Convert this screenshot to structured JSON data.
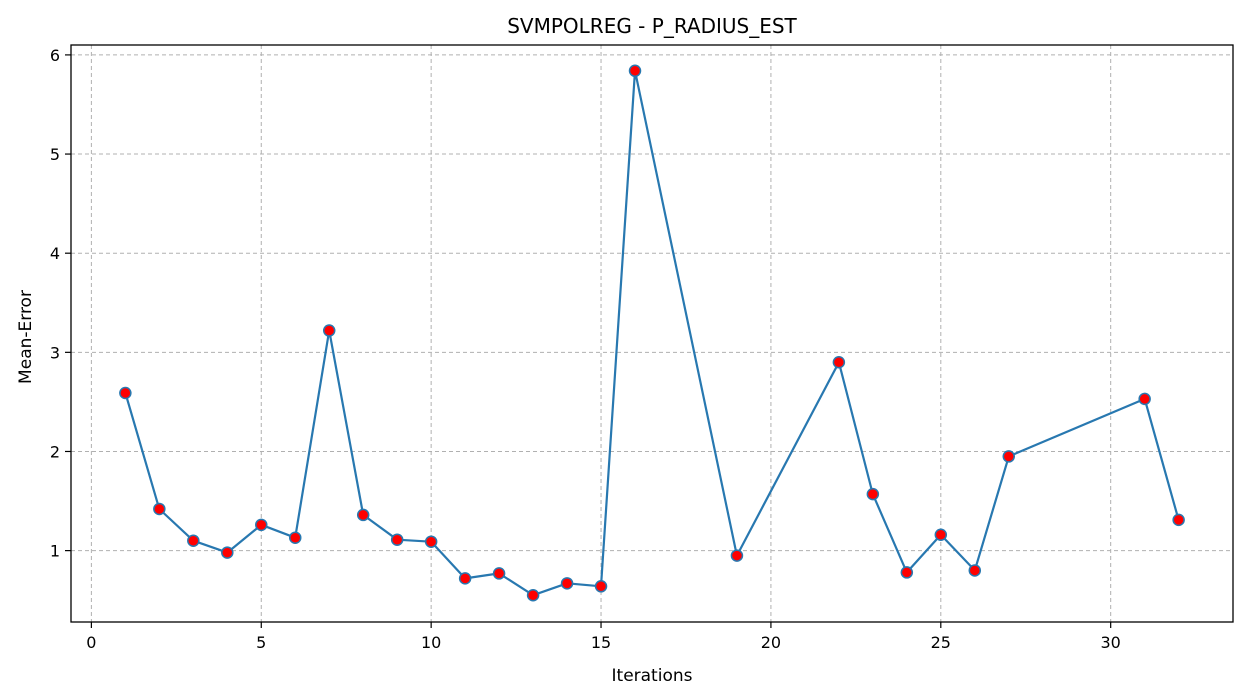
{
  "chart_data": {
    "type": "line",
    "title": "SVMPOLREG - P_RADIUS_EST",
    "xlabel": "Iterations",
    "ylabel": "Mean-Error",
    "xlim": [
      -0.6,
      33.6
    ],
    "ylim": [
      0.28,
      6.1
    ],
    "x_ticks": [
      0,
      5,
      10,
      15,
      20,
      25,
      30
    ],
    "y_ticks": [
      1,
      2,
      3,
      4,
      5,
      6
    ],
    "grid": true,
    "series": [
      {
        "x": [
          1,
          2,
          3,
          4,
          5,
          6,
          7,
          8,
          9,
          10,
          11,
          12,
          13,
          14,
          15,
          16,
          19,
          22,
          23,
          24,
          25,
          26,
          27,
          31,
          32
        ],
        "y": [
          2.59,
          1.42,
          1.1,
          0.98,
          1.26,
          1.13,
          3.22,
          1.36,
          1.11,
          1.09,
          0.72,
          0.77,
          0.55,
          0.67,
          0.64,
          5.84,
          0.95,
          2.9,
          1.57,
          0.78,
          1.16,
          0.8,
          1.95,
          2.53,
          1.31
        ],
        "line_color": "#2878b0",
        "marker_color": "#ff0000"
      }
    ]
  }
}
